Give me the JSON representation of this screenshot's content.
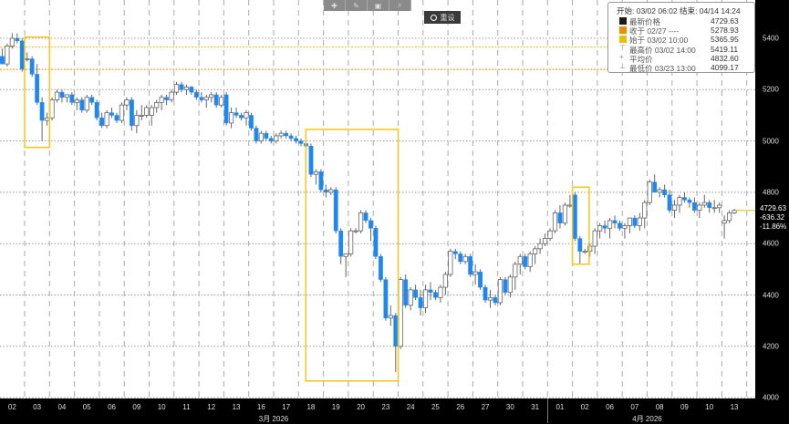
{
  "toolbar": {
    "icons": [
      "crosshair-icon",
      "pencil-icon",
      "news-icon",
      "zoom-icon"
    ],
    "reset_label": "重设"
  },
  "legend": {
    "header": "开始: 03/02 06:02 结束: 04/14 14:24",
    "rows": [
      {
        "label": "最新价格",
        "value": "4729.63",
        "color": "#1a1a1a"
      },
      {
        "label": "收于 02/27 ----",
        "value": "5278.93",
        "color": "#f08a00"
      },
      {
        "label": "始于 03/02 10:00",
        "value": "5365.95",
        "color": "#e8c000"
      },
      {
        "label": "最高价 03/02 14:00",
        "value": "5419.11",
        "icon": "high-icon"
      },
      {
        "label": "平均价",
        "value": "4832.60",
        "icon": "average-icon"
      },
      {
        "label": "最低价 03/23 13:00",
        "value": "4099.17",
        "icon": "low-icon"
      }
    ]
  },
  "price_box": {
    "last": "4729.63",
    "change": "-636.32",
    "change_pct": "-11.86%"
  },
  "chart_data": {
    "type": "candlestick",
    "ylim": [
      4000,
      5450
    ],
    "yticks": [
      "5400",
      "5200",
      "5000",
      "4800",
      "4600",
      "4400",
      "4200",
      "4000"
    ],
    "grid": true,
    "colors": {
      "down": "#1e88f0",
      "up": "#ffffff",
      "up_border": "#666666",
      "highlight": "#f5c518",
      "start_line": "#e8c000",
      "prev_close_line": "#f08a00",
      "last_line": "#e8c000"
    },
    "reference_lines": {
      "start": 5365.95,
      "prev_close": 5278.93,
      "last": 4729.63
    },
    "x_labels": [
      "02",
      "03",
      "04",
      "05",
      "06",
      "09",
      "10",
      "11",
      "12",
      "13",
      "16",
      "17",
      "18",
      "19",
      "20",
      "23",
      "24",
      "25",
      "26",
      "27",
      "30",
      "31",
      "01",
      "02",
      "06",
      "07",
      "08",
      "09",
      "10",
      "13"
    ],
    "months": [
      {
        "label": "3月 2026",
        "from": 0,
        "to": 21
      },
      {
        "label": "4月 2026",
        "from": 22,
        "to": 29
      }
    ],
    "highlights": [
      {
        "from_day": 1,
        "to_day": 1,
        "low": 4975,
        "high": 5405
      },
      {
        "from_day": 12,
        "to_day": 15,
        "low": 4065,
        "high": 5045
      },
      {
        "from_day": 23,
        "to_day": 23,
        "low": 4520,
        "high": 4820
      }
    ],
    "days": [
      [
        [
          5330,
          5360,
          5300,
          5300
        ],
        [
          5300,
          5380,
          5290,
          5370
        ],
        [
          5370,
          5420,
          5360,
          5400
        ],
        [
          5400,
          5419,
          5380,
          5390
        ],
        [
          5390,
          5400,
          5270,
          5280
        ]
      ],
      [
        [
          5320,
          5345,
          5310,
          5320
        ],
        [
          5320,
          5330,
          5250,
          5260
        ],
        [
          5260,
          5300,
          5140,
          5150
        ],
        [
          5150,
          5170,
          5000,
          5080
        ],
        [
          5080,
          5110,
          5060,
          5090
        ]
      ],
      [
        [
          5090,
          5170,
          5080,
          5160
        ],
        [
          5160,
          5200,
          5150,
          5190
        ],
        [
          5190,
          5200,
          5150,
          5170
        ],
        [
          5170,
          5180,
          5150,
          5180
        ],
        [
          5180,
          5190,
          5140,
          5150
        ]
      ],
      [
        [
          5150,
          5170,
          5120,
          5160
        ],
        [
          5160,
          5170,
          5110,
          5120
        ],
        [
          5120,
          5180,
          5110,
          5170
        ],
        [
          5170,
          5180,
          5140,
          5150
        ],
        [
          5150,
          5160,
          5080,
          5090
        ]
      ],
      [
        [
          5090,
          5110,
          5050,
          5060
        ],
        [
          5060,
          5120,
          5050,
          5110
        ],
        [
          5110,
          5130,
          5090,
          5100
        ],
        [
          5100,
          5110,
          5070,
          5080
        ],
        [
          5080,
          5150,
          5070,
          5140
        ]
      ],
      [
        [
          5140,
          5170,
          5120,
          5160
        ],
        [
          5160,
          5170,
          5040,
          5060
        ],
        [
          5060,
          5120,
          5030,
          5100
        ],
        [
          5100,
          5140,
          5080,
          5100
        ],
        [
          5100,
          5140,
          5090,
          5130
        ]
      ],
      [
        [
          5100,
          5140,
          5060,
          5130
        ],
        [
          5130,
          5160,
          5110,
          5150
        ],
        [
          5150,
          5180,
          5120,
          5170
        ],
        [
          5170,
          5180,
          5140,
          5160
        ],
        [
          5160,
          5200,
          5150,
          5190
        ]
      ],
      [
        [
          5190,
          5230,
          5180,
          5220
        ],
        [
          5220,
          5230,
          5190,
          5200
        ],
        [
          5200,
          5220,
          5180,
          5210
        ],
        [
          5210,
          5215,
          5180,
          5190
        ],
        [
          5190,
          5200,
          5160,
          5170
        ]
      ],
      [
        [
          5170,
          5190,
          5150,
          5160
        ],
        [
          5160,
          5180,
          5130,
          5170
        ],
        [
          5170,
          5190,
          5150,
          5180
        ],
        [
          5180,
          5190,
          5130,
          5140
        ],
        [
          5140,
          5180,
          5130,
          5170
        ]
      ],
      [
        [
          5180,
          5190,
          5060,
          5070
        ],
        [
          5070,
          5130,
          5050,
          5110
        ],
        [
          5110,
          5130,
          5090,
          5100
        ],
        [
          5100,
          5110,
          5080,
          5090
        ],
        [
          5090,
          5120,
          5060,
          5110
        ]
      ],
      [
        [
          5100,
          5110,
          5040,
          5050
        ],
        [
          5050,
          5060,
          4990,
          5000
        ],
        [
          5000,
          5040,
          4990,
          5030
        ],
        [
          5030,
          5040,
          5000,
          5010
        ],
        [
          5010,
          5020,
          4990,
          5000
        ]
      ],
      [
        [
          5000,
          5030,
          4990,
          5020
        ],
        [
          5020,
          5040,
          5010,
          5030
        ],
        [
          5030,
          5040,
          5010,
          5020
        ],
        [
          5020,
          5030,
          5000,
          5010
        ],
        [
          5010,
          5020,
          4990,
          5000
        ]
      ],
      [
        [
          5000,
          5010,
          4980,
          4990
        ],
        [
          4990,
          5000,
          4970,
          4980
        ],
        [
          4980,
          4990,
          4860,
          4870
        ],
        [
          4870,
          4890,
          4830,
          4880
        ],
        [
          4880,
          4890,
          4800,
          4810
        ]
      ],
      [
        [
          4810,
          4830,
          4780,
          4800
        ],
        [
          4800,
          4820,
          4790,
          4810
        ],
        [
          4810,
          4820,
          4640,
          4650
        ],
        [
          4650,
          4660,
          4520,
          4550
        ],
        [
          4550,
          4560,
          4470,
          4560
        ]
      ],
      [
        [
          4560,
          4660,
          4550,
          4650
        ],
        [
          4650,
          4660,
          4640,
          4650
        ],
        [
          4650,
          4730,
          4640,
          4720
        ],
        [
          4720,
          4730,
          4680,
          4690
        ],
        [
          4690,
          4700,
          4610,
          4660
        ]
      ],
      [
        [
          4660,
          4670,
          4540,
          4550
        ],
        [
          4550,
          4560,
          4450,
          4460
        ],
        [
          4460,
          4470,
          4300,
          4310
        ],
        [
          4310,
          4360,
          4280,
          4320
        ],
        [
          4320,
          4330,
          4099.17,
          4200
        ]
      ],
      [
        [
          4200,
          4470,
          4190,
          4460
        ],
        [
          4460,
          4480,
          4350,
          4360
        ],
        [
          4360,
          4430,
          4340,
          4420
        ],
        [
          4420,
          4440,
          4380,
          4390
        ],
        [
          4390,
          4420,
          4320,
          4350
        ]
      ],
      [
        [
          4350,
          4440,
          4330,
          4420
        ],
        [
          4420,
          4450,
          4380,
          4410
        ],
        [
          4410,
          4420,
          4380,
          4390
        ],
        [
          4390,
          4440,
          4370,
          4430
        ],
        [
          4430,
          4490,
          4400,
          4480
        ]
      ],
      [
        [
          4480,
          4580,
          4470,
          4570
        ],
        [
          4570,
          4580,
          4540,
          4560
        ],
        [
          4560,
          4570,
          4520,
          4530
        ],
        [
          4530,
          4560,
          4520,
          4550
        ],
        [
          4550,
          4560,
          4470,
          4480
        ]
      ],
      [
        [
          4480,
          4520,
          4440,
          4490
        ],
        [
          4490,
          4500,
          4420,
          4430
        ],
        [
          4430,
          4440,
          4370,
          4380
        ],
        [
          4380,
          4420,
          4350,
          4390
        ],
        [
          4390,
          4400,
          4360,
          4370
        ]
      ],
      [
        [
          4370,
          4470,
          4360,
          4460
        ],
        [
          4460,
          4470,
          4400,
          4410
        ],
        [
          4410,
          4480,
          4390,
          4470
        ],
        [
          4470,
          4530,
          4420,
          4520
        ],
        [
          4520,
          4560,
          4480,
          4550
        ]
      ],
      [
        [
          4550,
          4560,
          4500,
          4510
        ],
        [
          4510,
          4570,
          4490,
          4560
        ],
        [
          4560,
          4590,
          4520,
          4580
        ],
        [
          4580,
          4620,
          4560,
          4600
        ],
        [
          4600,
          4640,
          4590,
          4620
        ]
      ],
      [
        [
          4620,
          4660,
          4610,
          4650
        ],
        [
          4650,
          4730,
          4640,
          4720
        ],
        [
          4720,
          4750,
          4660,
          4680
        ],
        [
          4680,
          4760,
          4670,
          4750
        ],
        [
          4750,
          4790,
          4740,
          4750
        ]
      ],
      [
        [
          4790,
          4800,
          4610,
          4620
        ],
        [
          4620,
          4630,
          4520,
          4570
        ],
        [
          4570,
          4580,
          4560,
          4570
        ],
        [
          4570,
          4600,
          4550,
          4590
        ],
        [
          4590,
          4660,
          4560,
          4650
        ]
      ],
      [
        [
          4650,
          4680,
          4620,
          4670
        ],
        [
          4670,
          4690,
          4640,
          4660
        ],
        [
          4660,
          4700,
          4620,
          4690
        ],
        [
          4690,
          4710,
          4660,
          4680
        ],
        [
          4680,
          4690,
          4650,
          4660
        ]
      ],
      [
        [
          4660,
          4680,
          4620,
          4670
        ],
        [
          4670,
          4700,
          4640,
          4700
        ],
        [
          4700,
          4710,
          4660,
          4670
        ],
        [
          4670,
          4720,
          4650,
          4700
        ],
        [
          4700,
          4770,
          4660,
          4760
        ]
      ],
      [
        [
          4760,
          4850,
          4750,
          4840
        ],
        [
          4840,
          4870,
          4800,
          4800
        ],
        [
          4800,
          4820,
          4780,
          4810
        ],
        [
          4810,
          4830,
          4780,
          4790
        ],
        [
          4790,
          4810,
          4720,
          4730
        ]
      ],
      [
        [
          4730,
          4770,
          4700,
          4750
        ],
        [
          4750,
          4790,
          4720,
          4780
        ],
        [
          4780,
          4800,
          4760,
          4770
        ],
        [
          4770,
          4780,
          4740,
          4760
        ],
        [
          4760,
          4780,
          4720,
          4730
        ]
      ],
      [
        [
          4730,
          4760,
          4700,
          4750
        ],
        [
          4750,
          4790,
          4740,
          4760
        ],
        [
          4760,
          4770,
          4720,
          4740
        ],
        [
          4740,
          4770,
          4720,
          4740
        ],
        [
          4740,
          4760,
          4720,
          4750
        ]
      ],
      [
        [
          4680,
          4710,
          4620,
          4690
        ],
        [
          4690,
          4730,
          4680,
          4720
        ],
        [
          4720,
          4735,
          4715,
          4729.63
        ]
      ]
    ]
  }
}
